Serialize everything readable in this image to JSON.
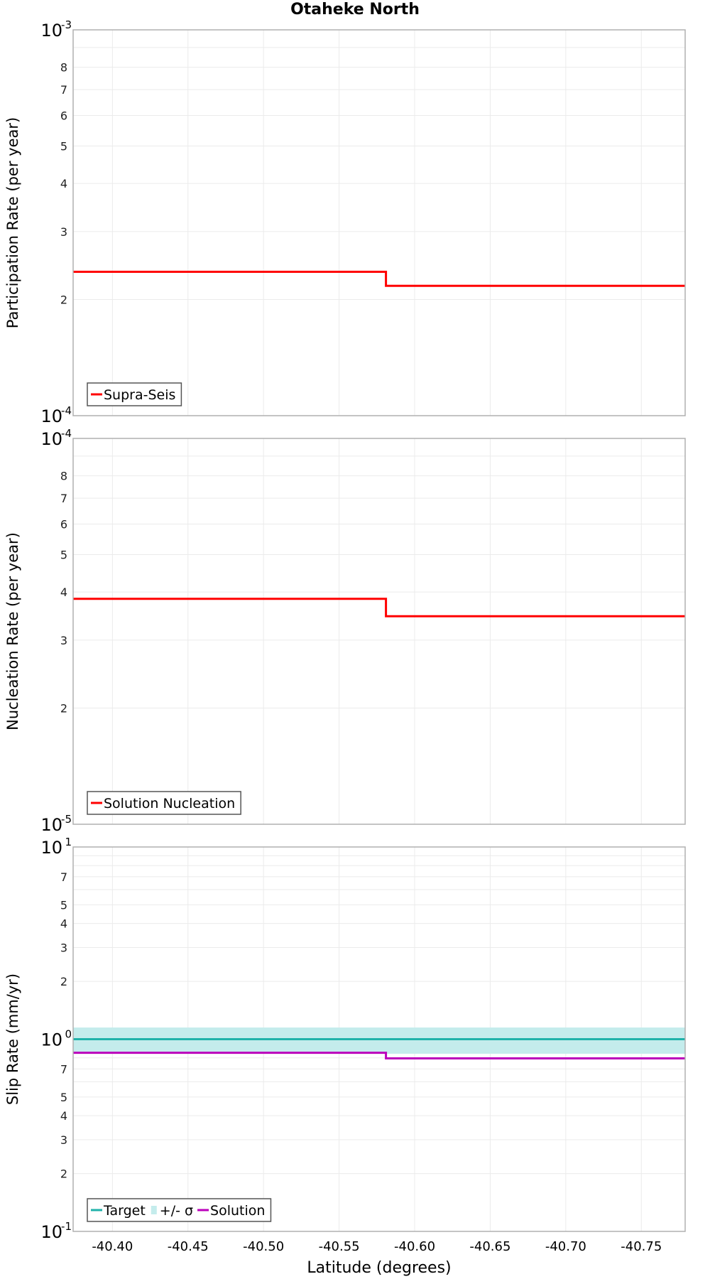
{
  "title": "Otaheke North",
  "xaxis": {
    "label": "Latitude (degrees)",
    "range": [
      -40.374,
      -40.779
    ],
    "ticks": [
      -40.4,
      -40.45,
      -40.5,
      -40.55,
      -40.6,
      -40.65,
      -40.7,
      -40.75
    ],
    "tick_labels": [
      "-40.40",
      "-40.45",
      "-40.50",
      "-40.55",
      "-40.60",
      "-40.65",
      "-40.70",
      "-40.75"
    ]
  },
  "panels": [
    {
      "ylabel": "Participation Rate (per year)",
      "ylog_range": [
        -4,
        -3
      ],
      "top_label": {
        "base": "10",
        "exp": "-3"
      },
      "bottom_label": {
        "base": "10",
        "exp": "-4"
      },
      "minor_labels": [
        "2",
        "3",
        "4",
        "5",
        "6",
        "7",
        "8"
      ],
      "legend": [
        {
          "label": "Supra-Seis",
          "color": "#ff0000",
          "kind": "line"
        }
      ]
    },
    {
      "ylabel": "Nucleation Rate (per year)",
      "ylog_range": [
        -5,
        -4
      ],
      "top_label": {
        "base": "10",
        "exp": "-4"
      },
      "bottom_label": {
        "base": "10",
        "exp": "-5"
      },
      "minor_labels": [
        "2",
        "3",
        "4",
        "5",
        "6",
        "7",
        "8"
      ],
      "legend": [
        {
          "label": "Solution Nucleation",
          "color": "#ff0000",
          "kind": "line"
        }
      ]
    },
    {
      "ylabel": "Slip Rate (mm/yr)",
      "ylog_range": [
        -1,
        1
      ],
      "top_label": {
        "base": "10",
        "exp": "1"
      },
      "mid_label": {
        "base": "10",
        "exp": "0"
      },
      "bottom_label": {
        "base": "10",
        "exp": "-1"
      },
      "minor_labels": [
        "2",
        "3",
        "4",
        "5",
        "7"
      ],
      "legend": [
        {
          "label": "Target",
          "color": "#20b2aa",
          "kind": "line"
        },
        {
          "label": "+/- σ",
          "color": "#c4ecec",
          "kind": "box"
        },
        {
          "label": "Solution",
          "color": "#bb00bb",
          "kind": "line"
        }
      ]
    }
  ],
  "chart_data": [
    {
      "type": "line",
      "title": "Otaheke North",
      "xlabel": "Latitude (degrees)",
      "ylabel": "Participation Rate (per year)",
      "yscale": "log",
      "ylim": [
        0.0001,
        0.001
      ],
      "xlim": [
        -40.374,
        -40.779
      ],
      "grid": true,
      "legend_position": "lower left",
      "series": [
        {
          "name": "Supra-Seis",
          "color": "#ff0000",
          "step": true,
          "x": [
            -40.374,
            -40.581,
            -40.581,
            -40.779
          ],
          "y": [
            0.000236,
            0.000236,
            0.000217,
            0.000217
          ]
        }
      ]
    },
    {
      "type": "line",
      "xlabel": "Latitude (degrees)",
      "ylabel": "Nucleation Rate (per year)",
      "yscale": "log",
      "ylim": [
        1e-05,
        0.0001
      ],
      "xlim": [
        -40.374,
        -40.779
      ],
      "grid": true,
      "legend_position": "lower left",
      "series": [
        {
          "name": "Solution Nucleation",
          "color": "#ff0000",
          "step": true,
          "x": [
            -40.374,
            -40.581,
            -40.581,
            -40.779
          ],
          "y": [
            3.84e-05,
            3.84e-05,
            3.46e-05,
            3.46e-05
          ]
        }
      ]
    },
    {
      "type": "line",
      "xlabel": "Latitude (degrees)",
      "ylabel": "Slip Rate (mm/yr)",
      "yscale": "log",
      "ylim": [
        0.1,
        10
      ],
      "xlim": [
        -40.374,
        -40.779
      ],
      "grid": true,
      "legend_position": "lower left",
      "series": [
        {
          "name": "Target",
          "color": "#20b2aa",
          "x": [
            -40.374,
            -40.779
          ],
          "y": [
            1.0,
            1.0
          ]
        },
        {
          "name": "+/- σ",
          "color": "#c4ecec",
          "kind": "band",
          "x": [
            -40.374,
            -40.779
          ],
          "y_low": [
            0.84,
            0.84
          ],
          "y_high": [
            1.15,
            1.15
          ]
        },
        {
          "name": "Solution",
          "color": "#bb00bb",
          "step": true,
          "x": [
            -40.374,
            -40.581,
            -40.581,
            -40.779
          ],
          "y": [
            0.85,
            0.85,
            0.795,
            0.795
          ]
        }
      ]
    }
  ]
}
